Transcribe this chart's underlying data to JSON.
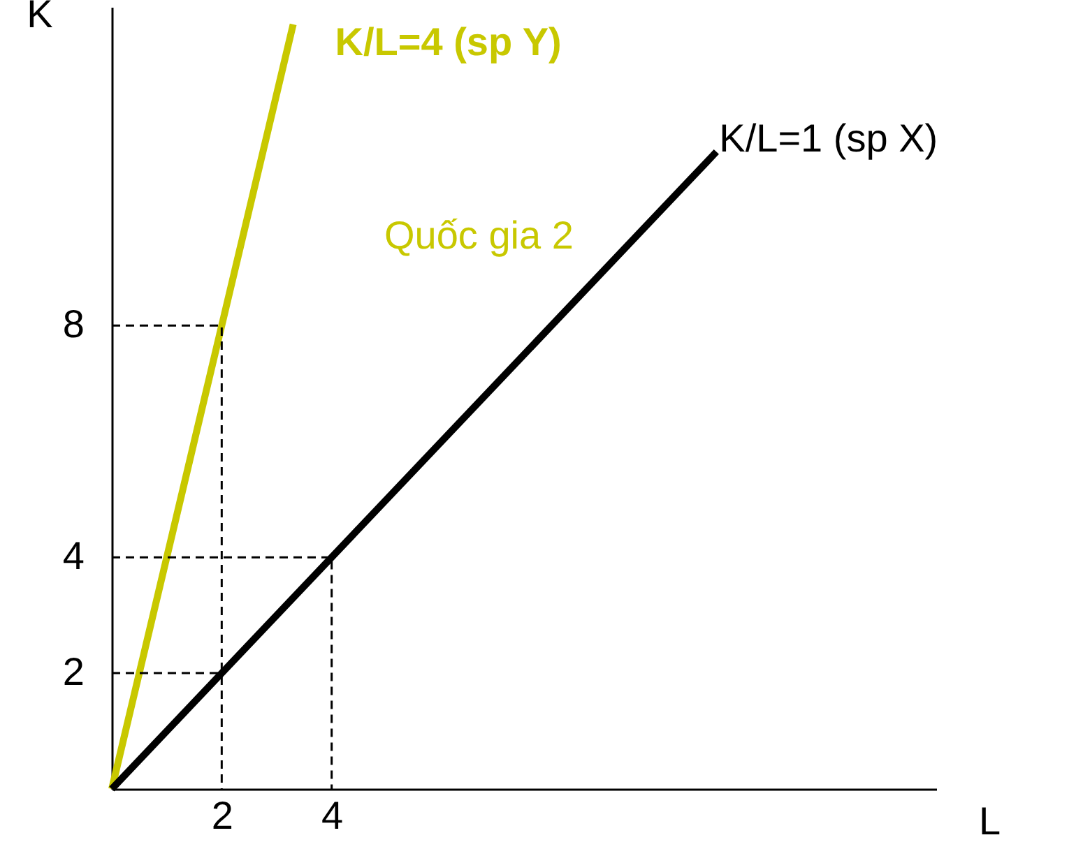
{
  "chart_data": {
    "type": "line",
    "xlabel": "L",
    "ylabel": "K",
    "xlim": [
      0,
      15
    ],
    "ylim": [
      0,
      13.5
    ],
    "xticks": [
      2,
      4
    ],
    "yticks": [
      2,
      4,
      8
    ],
    "grid": false,
    "marker": "none",
    "annotations": [
      "Quốc gia 2"
    ],
    "series": [
      {
        "name": "K/L=4 (sp Y)",
        "color": "#c8c800",
        "x": [
          0,
          3.3
        ],
        "values": [
          0,
          13.2
        ]
      },
      {
        "name": "K/L=1 (sp X)",
        "color": "#000000",
        "x": [
          0,
          11
        ],
        "values": [
          0,
          11
        ]
      },
      {
        "color": "#000000",
        "line_style": "dashed",
        "x": [
          0,
          2,
          2
        ],
        "values": [
          8,
          8,
          0
        ]
      },
      {
        "color": "#000000",
        "line_style": "dashed",
        "x": [
          0,
          2
        ],
        "values": [
          2,
          2
        ]
      },
      {
        "color": "#000000",
        "line_style": "dashed",
        "x": [
          0,
          4,
          4
        ],
        "values": [
          4,
          4,
          0
        ]
      }
    ]
  }
}
